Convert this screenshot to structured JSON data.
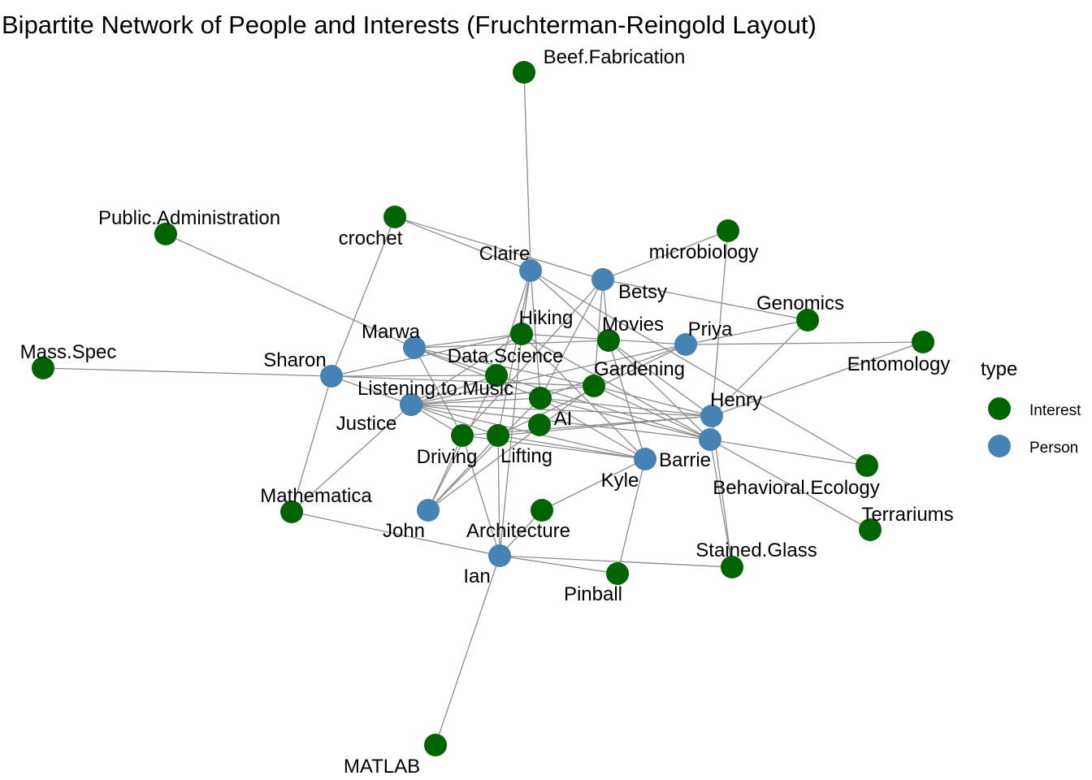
{
  "chart_data": {
    "type": "network",
    "title": "Bipartite Network of People and Interests (Fruchterman-Reingold Layout)",
    "legend": {
      "title": "type",
      "position": "right",
      "items": [
        {
          "label": "Interest",
          "color": "#006400"
        },
        {
          "label": "Person",
          "color": "#4682B4"
        }
      ]
    },
    "colors": {
      "Interest": "#006400",
      "Person": "#4682B4",
      "edge": "#8c8c8c"
    },
    "nodes": [
      {
        "id": "Beef.Fabrication",
        "type": "Interest"
      },
      {
        "id": "Public.Administration",
        "type": "Interest"
      },
      {
        "id": "crochet",
        "type": "Interest"
      },
      {
        "id": "microbiology",
        "type": "Interest"
      },
      {
        "id": "Claire",
        "type": "Person"
      },
      {
        "id": "Betsy",
        "type": "Person"
      },
      {
        "id": "Genomics",
        "type": "Interest"
      },
      {
        "id": "Hiking",
        "type": "Interest"
      },
      {
        "id": "Movies",
        "type": "Interest"
      },
      {
        "id": "Priya",
        "type": "Person"
      },
      {
        "id": "Marwa",
        "type": "Person"
      },
      {
        "id": "Mass.Spec",
        "type": "Interest"
      },
      {
        "id": "Data.Science",
        "type": "Interest"
      },
      {
        "id": "Entomology",
        "type": "Interest"
      },
      {
        "id": "Sharon",
        "type": "Person"
      },
      {
        "id": "Gardening",
        "type": "Interest"
      },
      {
        "id": "Listening.to.Music",
        "type": "Interest"
      },
      {
        "id": "Henry",
        "type": "Person"
      },
      {
        "id": "Justice",
        "type": "Person"
      },
      {
        "id": "AI",
        "type": "Interest"
      },
      {
        "id": "Driving",
        "type": "Interest"
      },
      {
        "id": "Lifting",
        "type": "Interest"
      },
      {
        "id": "Barrie",
        "type": "Person"
      },
      {
        "id": "Kyle",
        "type": "Person"
      },
      {
        "id": "Behavioral.Ecology",
        "type": "Interest"
      },
      {
        "id": "Mathematica",
        "type": "Interest"
      },
      {
        "id": "Terrariums",
        "type": "Interest"
      },
      {
        "id": "John",
        "type": "Person"
      },
      {
        "id": "Architecture",
        "type": "Interest"
      },
      {
        "id": "Ian",
        "type": "Person"
      },
      {
        "id": "Stained.Glass",
        "type": "Interest"
      },
      {
        "id": "Pinball",
        "type": "Interest"
      },
      {
        "id": "MATLAB",
        "type": "Interest"
      }
    ],
    "edges": [
      [
        "Claire",
        "Beef.Fabrication"
      ],
      [
        "Claire",
        "crochet"
      ],
      [
        "Claire",
        "Hiking"
      ],
      [
        "Claire",
        "Movies"
      ],
      [
        "Claire",
        "AI"
      ],
      [
        "Claire",
        "Lifting"
      ],
      [
        "Claire",
        "Data.Science"
      ],
      [
        "Claire",
        "Behavioral.Ecology"
      ],
      [
        "Betsy",
        "crochet"
      ],
      [
        "Betsy",
        "microbiology"
      ],
      [
        "Betsy",
        "Genomics"
      ],
      [
        "Betsy",
        "Movies"
      ],
      [
        "Betsy",
        "Gardening"
      ],
      [
        "Betsy",
        "AI"
      ],
      [
        "Betsy",
        "Driving"
      ],
      [
        "Priya",
        "Hiking"
      ],
      [
        "Priya",
        "Entomology"
      ],
      [
        "Priya",
        "Genomics"
      ],
      [
        "Priya",
        "Listening.to.Music"
      ],
      [
        "Priya",
        "AI"
      ],
      [
        "Priya",
        "Lifting"
      ],
      [
        "Marwa",
        "Public.Administration"
      ],
      [
        "Marwa",
        "Hiking"
      ],
      [
        "Marwa",
        "Movies"
      ],
      [
        "Marwa",
        "Data.Science"
      ],
      [
        "Marwa",
        "Gardening"
      ],
      [
        "Marwa",
        "AI"
      ],
      [
        "Marwa",
        "Driving"
      ],
      [
        "Sharon",
        "Mass.Spec"
      ],
      [
        "Sharon",
        "crochet"
      ],
      [
        "Sharon",
        "Hiking"
      ],
      [
        "Sharon",
        "Data.Science"
      ],
      [
        "Sharon",
        "Listening.to.Music"
      ],
      [
        "Sharon",
        "Gardening"
      ],
      [
        "Sharon",
        "Mathematica"
      ],
      [
        "Henry",
        "microbiology"
      ],
      [
        "Henry",
        "Genomics"
      ],
      [
        "Henry",
        "Entomology"
      ],
      [
        "Henry",
        "Movies"
      ],
      [
        "Henry",
        "Gardening"
      ],
      [
        "Henry",
        "Listening.to.Music"
      ],
      [
        "Henry",
        "AI"
      ],
      [
        "Henry",
        "Driving"
      ],
      [
        "Henry",
        "Stained.Glass"
      ],
      [
        "Henry",
        "Lifting"
      ],
      [
        "Justice",
        "Hiking"
      ],
      [
        "Justice",
        "Data.Science"
      ],
      [
        "Justice",
        "AI"
      ],
      [
        "Justice",
        "Driving"
      ],
      [
        "Justice",
        "Lifting"
      ],
      [
        "Justice",
        "Mathematica"
      ],
      [
        "Justice",
        "Gardening"
      ],
      [
        "Barrie",
        "Listening.to.Music"
      ],
      [
        "Barrie",
        "Data.Science"
      ],
      [
        "Barrie",
        "Gardening"
      ],
      [
        "Barrie",
        "Behavioral.Ecology"
      ],
      [
        "Barrie",
        "Terrariums"
      ],
      [
        "Barrie",
        "Stained.Glass"
      ],
      [
        "Barrie",
        "Hiking"
      ],
      [
        "Barrie",
        "Movies"
      ],
      [
        "Barrie",
        "AI"
      ],
      [
        "Kyle",
        "Hiking"
      ],
      [
        "Kyle",
        "AI"
      ],
      [
        "Kyle",
        "Lifting"
      ],
      [
        "Kyle",
        "Listening.to.Music"
      ],
      [
        "Kyle",
        "Architecture"
      ],
      [
        "Kyle",
        "Pinball"
      ],
      [
        "Kyle",
        "Movies"
      ],
      [
        "Kyle",
        "Driving"
      ],
      [
        "John",
        "Lifting"
      ],
      [
        "John",
        "Driving"
      ],
      [
        "John",
        "AI"
      ],
      [
        "John",
        "Data.Science"
      ],
      [
        "John",
        "Gardening"
      ],
      [
        "Ian",
        "Mathematica"
      ],
      [
        "Ian",
        "MATLAB"
      ],
      [
        "Ian",
        "Pinball"
      ],
      [
        "Ian",
        "Stained.Glass"
      ],
      [
        "Ian",
        "Lifting"
      ],
      [
        "Ian",
        "Driving"
      ],
      [
        "Ian",
        "Architecture"
      ],
      [
        "Ian",
        "Hiking"
      ]
    ]
  }
}
